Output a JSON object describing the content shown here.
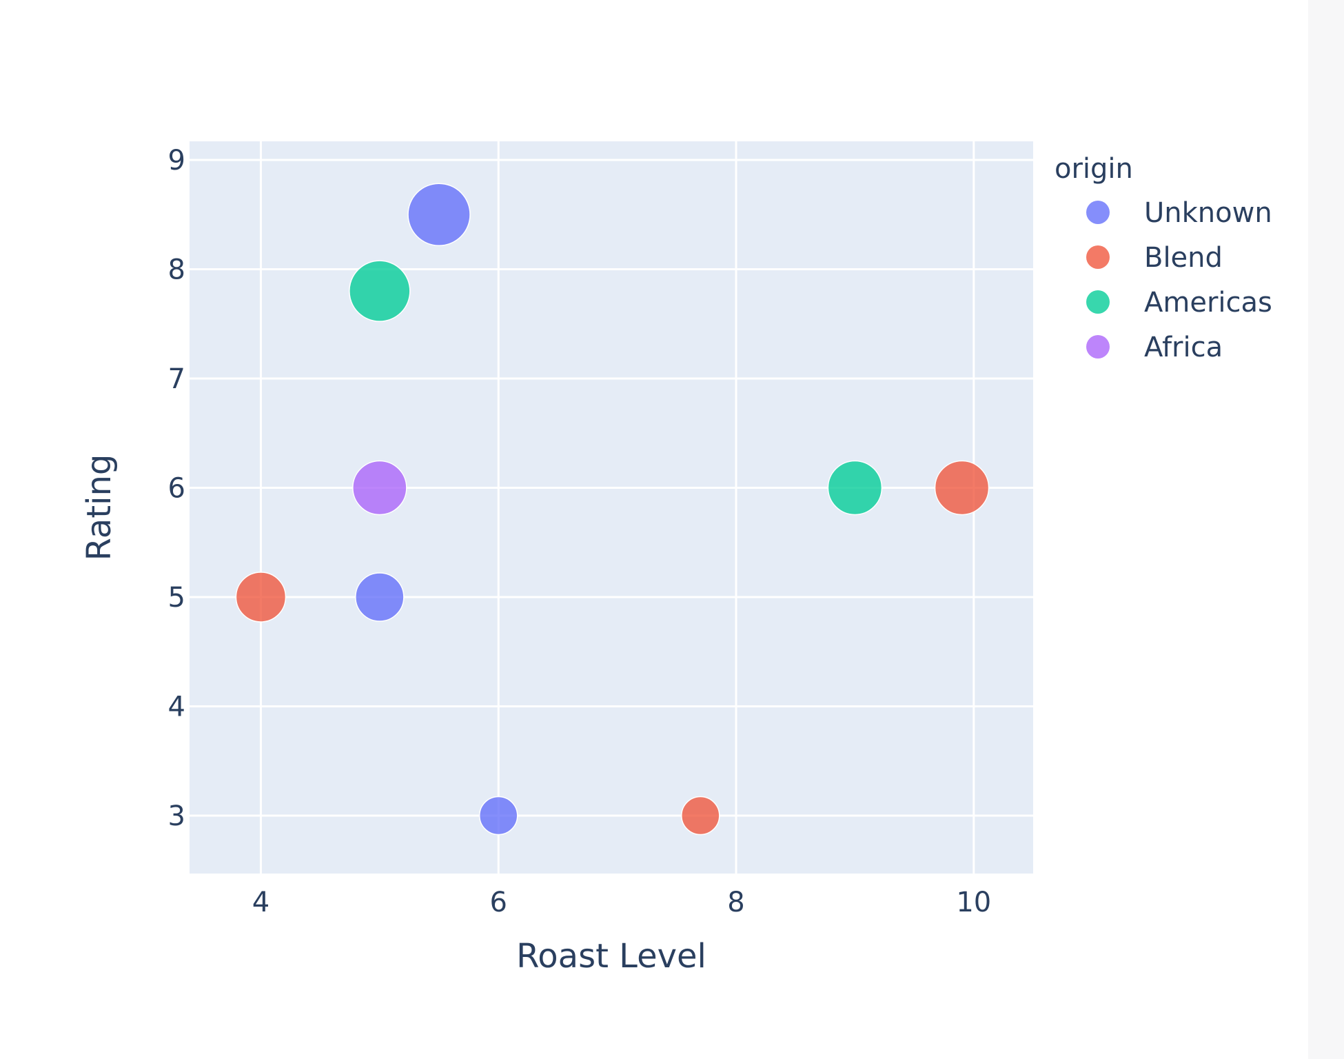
{
  "chart_data": {
    "type": "scatter",
    "xlabel": "Roast Level",
    "ylabel": "Rating",
    "xlim": [
      3.4,
      10.5
    ],
    "ylim": [
      2.47,
      9.17
    ],
    "xticks": [
      4,
      6,
      8,
      10
    ],
    "yticks": [
      3,
      4,
      5,
      6,
      7,
      8,
      9
    ],
    "grid": true,
    "legend": {
      "title": "origin",
      "placement": "right"
    },
    "series": [
      {
        "name": "Unknown",
        "color": "#636efa",
        "points": [
          {
            "x": 5.5,
            "y": 8.5,
            "size": 90
          },
          {
            "x": 5.0,
            "y": 5.0,
            "size": 70
          },
          {
            "x": 6.0,
            "y": 3.0,
            "size": 55
          }
        ]
      },
      {
        "name": "Blend",
        "color": "#ef553b",
        "points": [
          {
            "x": 4.0,
            "y": 5.0,
            "size": 72
          },
          {
            "x": 9.9,
            "y": 6.0,
            "size": 78
          },
          {
            "x": 7.7,
            "y": 3.0,
            "size": 55
          }
        ]
      },
      {
        "name": "Americas",
        "color": "#00cc96",
        "points": [
          {
            "x": 5.0,
            "y": 7.8,
            "size": 88
          },
          {
            "x": 9.0,
            "y": 6.0,
            "size": 78
          }
        ]
      },
      {
        "name": "Africa",
        "color": "#ab63fa",
        "points": [
          {
            "x": 5.0,
            "y": 6.0,
            "size": 78
          }
        ]
      }
    ]
  }
}
